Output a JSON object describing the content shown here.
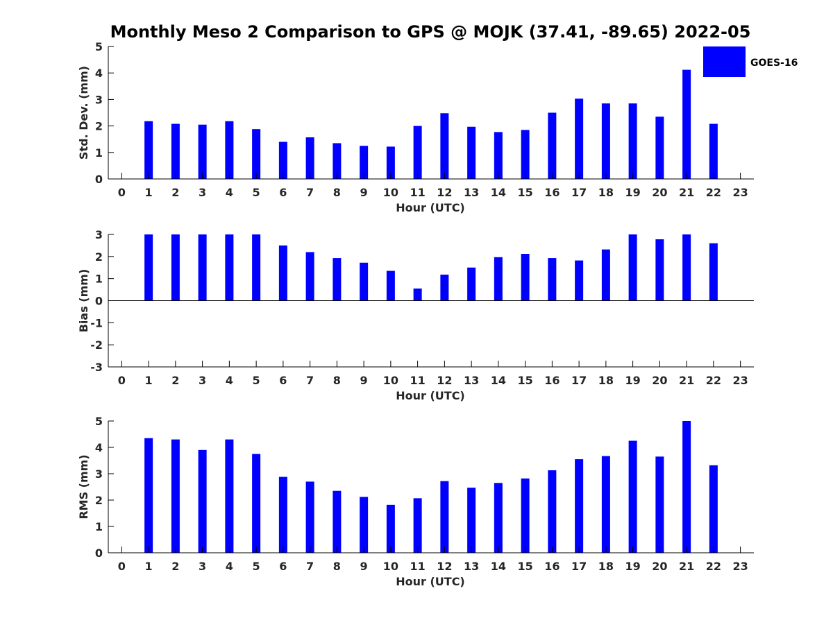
{
  "title": "Monthly Meso 2 Comparison to GPS @ MOJK (37.41, -89.65) 2022-05",
  "legend": {
    "label": "GOES-16",
    "color": "#0000ff",
    "placement": "top-right"
  },
  "colors": {
    "bar": "#0000ff",
    "axis": "#000000",
    "text": "#262626"
  },
  "chart_data": [
    {
      "type": "bar",
      "title": "Monthly Meso 2 Comparison to GPS @ MOJK (37.41, -89.65) 2022-05",
      "xlabel": "Hour (UTC)",
      "ylabel": "Std. Dev. (mm)",
      "xlim": [
        -0.5,
        23.5
      ],
      "ylim": [
        0,
        5
      ],
      "yticks": [
        0,
        1,
        2,
        3,
        4,
        5
      ],
      "categories": [
        "0",
        "1",
        "2",
        "3",
        "4",
        "5",
        "6",
        "7",
        "8",
        "9",
        "10",
        "11",
        "12",
        "13",
        "14",
        "15",
        "16",
        "17",
        "18",
        "19",
        "20",
        "21",
        "22",
        "23"
      ],
      "series": [
        {
          "name": "GOES-16",
          "values": [
            null,
            2.18,
            2.08,
            2.05,
            2.18,
            1.88,
            1.4,
            1.57,
            1.35,
            1.25,
            1.22,
            2.0,
            2.48,
            1.97,
            1.77,
            1.85,
            2.5,
            3.03,
            2.85,
            2.85,
            2.35,
            4.12,
            2.08,
            null
          ]
        }
      ],
      "grid": false
    },
    {
      "type": "bar",
      "xlabel": "Hour (UTC)",
      "ylabel": "Bias (mm)",
      "xlim": [
        -0.5,
        23.5
      ],
      "ylim": [
        -3,
        3
      ],
      "yticks": [
        -3,
        -2,
        -1,
        0,
        1,
        2,
        3
      ],
      "categories": [
        "0",
        "1",
        "2",
        "3",
        "4",
        "5",
        "6",
        "7",
        "8",
        "9",
        "10",
        "11",
        "12",
        "13",
        "14",
        "15",
        "16",
        "17",
        "18",
        "19",
        "20",
        "21",
        "22",
        "23"
      ],
      "series": [
        {
          "name": "GOES-16",
          "values": [
            null,
            3.0,
            3.0,
            3.0,
            3.0,
            3.0,
            2.5,
            2.2,
            1.93,
            1.72,
            1.35,
            0.55,
            1.18,
            1.5,
            1.97,
            2.12,
            1.93,
            1.82,
            2.32,
            3.0,
            2.78,
            3.0,
            2.6,
            null
          ]
        }
      ],
      "grid": false
    },
    {
      "type": "bar",
      "xlabel": "Hour (UTC)",
      "ylabel": "RMS (mm)",
      "xlim": [
        -0.5,
        23.5
      ],
      "ylim": [
        0,
        5
      ],
      "yticks": [
        0,
        1,
        2,
        3,
        4,
        5
      ],
      "categories": [
        "0",
        "1",
        "2",
        "3",
        "4",
        "5",
        "6",
        "7",
        "8",
        "9",
        "10",
        "11",
        "12",
        "13",
        "14",
        "15",
        "16",
        "17",
        "18",
        "19",
        "20",
        "21",
        "22",
        "23"
      ],
      "series": [
        {
          "name": "GOES-16",
          "values": [
            null,
            4.35,
            4.3,
            3.9,
            4.3,
            3.75,
            2.88,
            2.7,
            2.35,
            2.12,
            1.82,
            2.07,
            2.72,
            2.47,
            2.65,
            2.82,
            3.13,
            3.55,
            3.67,
            4.25,
            3.65,
            5.0,
            3.32,
            null
          ]
        }
      ],
      "grid": false
    }
  ]
}
